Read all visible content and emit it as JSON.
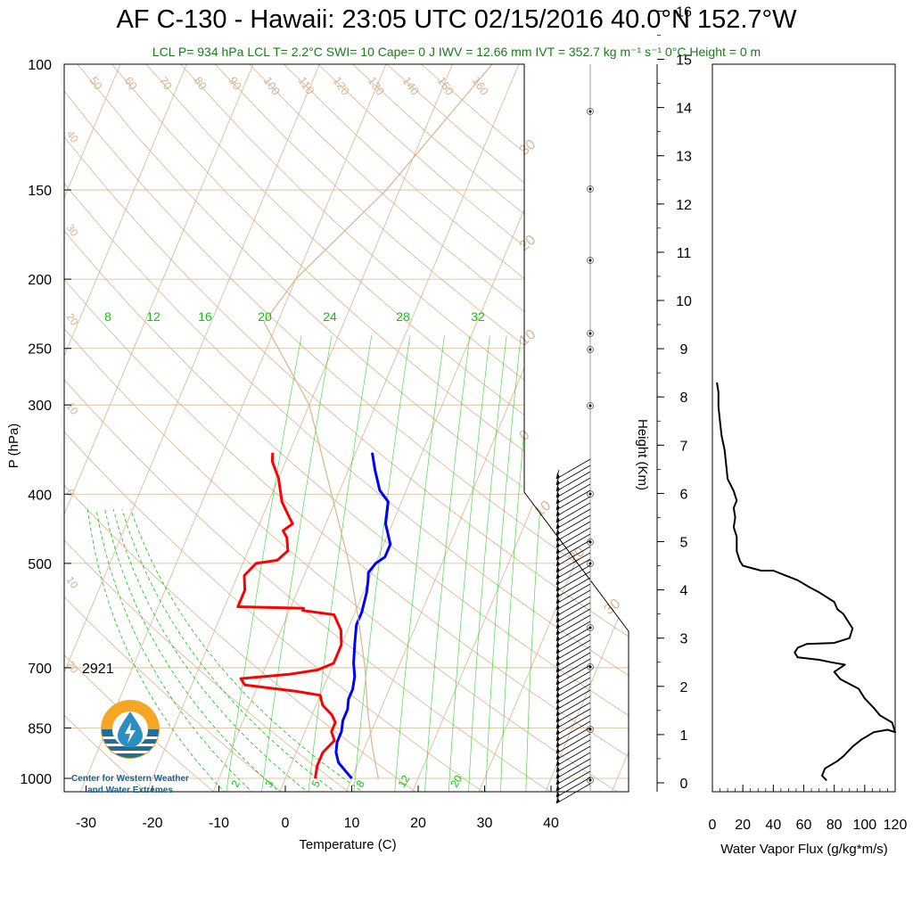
{
  "title": "AF C-130 - Hawaii: 23:05 UTC 02/15/2016  40.0°N 152.7°W",
  "subtitle": "LCL P= 934 hPa  LCL T= 2.2°C  SWI= 10  Cape= 0 J  IWV = 12.66 mm  IVT = 352.7 kg m⁻¹ s⁻¹  0°C Height = 0 m",
  "colors": {
    "temperature": "#ff0000",
    "dewpoint": "#0000ff",
    "dry_adiabat": "#d8b48c",
    "isotherm": "#d8b48c",
    "mixing_ratio": "#00cc00",
    "subtitle": "#1a7a1a"
  },
  "logo": {
    "line1": "Center for Western Weather",
    "line2": "and Water Extremes",
    "icon": "water-drop-logo-icon"
  },
  "annotation_value": "2921",
  "chart_data": [
    {
      "type": "line",
      "name": "skew-t",
      "xlabel": "Temperature (C)",
      "ylabel": "P (hPa)",
      "xlim": [
        -35,
        45
      ],
      "ylim": [
        1050,
        100
      ],
      "y_scale": "log",
      "x_ticks": [
        "-30",
        "-20",
        "-10",
        "0",
        "10",
        "20",
        "30",
        "40"
      ],
      "y_ticks": [
        "100",
        "150",
        "200",
        "250",
        "300",
        "400",
        "500",
        "700",
        "850",
        "1000"
      ],
      "dry_adiabat_labels": [
        "50",
        "60",
        "70",
        "80",
        "90",
        "100",
        "110",
        "120",
        "130",
        "140",
        "150",
        "160"
      ],
      "mixing_ratio_labels": [
        "8",
        "12",
        "16",
        "20",
        "24",
        "28",
        "32"
      ],
      "moist_labels_bottom": [
        "2",
        "3",
        "5",
        "8",
        "12",
        "20"
      ],
      "isotherm_left_labels": [
        "40",
        "30",
        "20",
        "10",
        "0",
        "10",
        "20"
      ],
      "isotherm_right_labels": [
        "30",
        "20",
        "10",
        "0",
        "10",
        "20",
        "30"
      ],
      "series": [
        {
          "key": "temperature",
          "points": [
            [
              -22.5,
              350
            ],
            [
              -22,
              360
            ],
            [
              -20,
              380
            ],
            [
              -18,
              410
            ],
            [
              -16,
              430
            ],
            [
              -15,
              440
            ],
            [
              -16,
              450
            ],
            [
              -15,
              460
            ],
            [
              -14,
              480
            ],
            [
              -15,
              495
            ],
            [
              -18,
              500
            ],
            [
              -19,
              520
            ],
            [
              -18,
              545
            ],
            [
              -18,
              575
            ],
            [
              -8,
              578
            ],
            [
              -8,
              582
            ],
            [
              -3,
              590
            ],
            [
              -1,
              620
            ],
            [
              0,
              650
            ],
            [
              0,
              690
            ],
            [
              -2,
              705
            ],
            [
              -6,
              715
            ],
            [
              -13,
              725
            ],
            [
              -12,
              740
            ],
            [
              -4,
              755
            ],
            [
              -2,
              760
            ],
            [
              0,
              765
            ],
            [
              1,
              790
            ],
            [
              3,
              815
            ],
            [
              4,
              835
            ],
            [
              4,
              860
            ],
            [
              5,
              885
            ],
            [
              4,
              920
            ],
            [
              4,
              960
            ],
            [
              4.5,
              1000
            ]
          ]
        },
        {
          "key": "dewpoint",
          "points": [
            [
              -7.5,
              350
            ],
            [
              -6,
              370
            ],
            [
              -4,
              395
            ],
            [
              -2,
              410
            ],
            [
              -1,
              440
            ],
            [
              1,
              470
            ],
            [
              1,
              490
            ],
            [
              0,
              500
            ],
            [
              -0.5,
              515
            ],
            [
              0,
              530
            ],
            [
              0.5,
              550
            ],
            [
              1,
              585
            ],
            [
              1,
              610
            ],
            [
              2,
              650
            ],
            [
              3,
              690
            ],
            [
              4,
              720
            ],
            [
              4.5,
              750
            ],
            [
              4.5,
              775
            ],
            [
              5,
              800
            ],
            [
              5,
              830
            ],
            [
              5.5,
              860
            ],
            [
              5.5,
              890
            ],
            [
              6,
              920
            ],
            [
              7,
              950
            ],
            [
              8.5,
              975
            ],
            [
              10,
              1000
            ]
          ]
        },
        {
          "key": "parcel",
          "points": [
            [
              14,
              1000
            ],
            [
              11,
              900
            ],
            [
              8,
              800
            ],
            [
              5,
              700
            ],
            [
              1,
              600
            ],
            [
              -4,
              500
            ],
            [
              -11,
              400
            ],
            [
              -20,
              300
            ],
            [
              -32,
              230
            ],
            [
              -30,
              200
            ],
            [
              -22,
              150
            ],
            [
              -14,
              100
            ]
          ]
        }
      ]
    },
    {
      "type": "line",
      "name": "water-vapor-flux",
      "xlabel": "Water Vapor Flux (g/kg*m/s)",
      "ylabel": "Height (Km)",
      "xlim": [
        0,
        120
      ],
      "ylim": [
        0,
        16.5
      ],
      "x_ticks": [
        "0",
        "20",
        "40",
        "60",
        "80",
        "100",
        "120"
      ],
      "y_ticks": [
        "0",
        "1",
        "2",
        "3",
        "4",
        "5",
        "6",
        "7",
        "8",
        "9",
        "10",
        "11",
        "12",
        "13",
        "14",
        "15",
        "16"
      ],
      "series": [
        {
          "key": "flux",
          "points": [
            [
              75,
              0.05
            ],
            [
              72,
              0.15
            ],
            [
              74,
              0.3
            ],
            [
              82,
              0.45
            ],
            [
              86,
              0.55
            ],
            [
              92,
              0.75
            ],
            [
              98,
              0.9
            ],
            [
              106,
              1.05
            ],
            [
              115,
              1.1
            ],
            [
              120,
              1.05
            ],
            [
              118,
              1.25
            ],
            [
              110,
              1.4
            ],
            [
              106,
              1.55
            ],
            [
              100,
              1.75
            ],
            [
              96,
              1.95
            ],
            [
              90,
              2.05
            ],
            [
              84,
              2.15
            ],
            [
              80,
              2.3
            ],
            [
              87,
              2.45
            ],
            [
              78,
              2.5
            ],
            [
              70,
              2.55
            ],
            [
              56,
              2.6
            ],
            [
              54,
              2.7
            ],
            [
              56,
              2.8
            ],
            [
              62,
              2.88
            ],
            [
              80,
              2.9
            ],
            [
              90,
              3.0
            ],
            [
              92,
              3.2
            ],
            [
              90,
              3.3
            ],
            [
              86,
              3.5
            ],
            [
              82,
              3.6
            ],
            [
              80,
              3.75
            ],
            [
              75,
              3.85
            ],
            [
              70,
              3.95
            ],
            [
              64,
              4.05
            ],
            [
              56,
              4.2
            ],
            [
              48,
              4.3
            ],
            [
              40,
              4.4
            ],
            [
              32,
              4.4
            ],
            [
              20,
              4.5
            ],
            [
              18,
              4.6
            ],
            [
              16,
              4.8
            ],
            [
              16,
              5.1
            ],
            [
              14,
              5.3
            ],
            [
              15,
              5.5
            ],
            [
              14,
              5.7
            ],
            [
              16,
              5.85
            ],
            [
              14,
              6.05
            ],
            [
              10,
              6.3
            ],
            [
              9,
              6.6
            ],
            [
              8,
              6.9
            ],
            [
              6,
              7.2
            ],
            [
              5,
              7.5
            ],
            [
              4,
              7.8
            ],
            [
              4,
              8.1
            ],
            [
              3,
              8.3
            ]
          ]
        }
      ]
    }
  ]
}
